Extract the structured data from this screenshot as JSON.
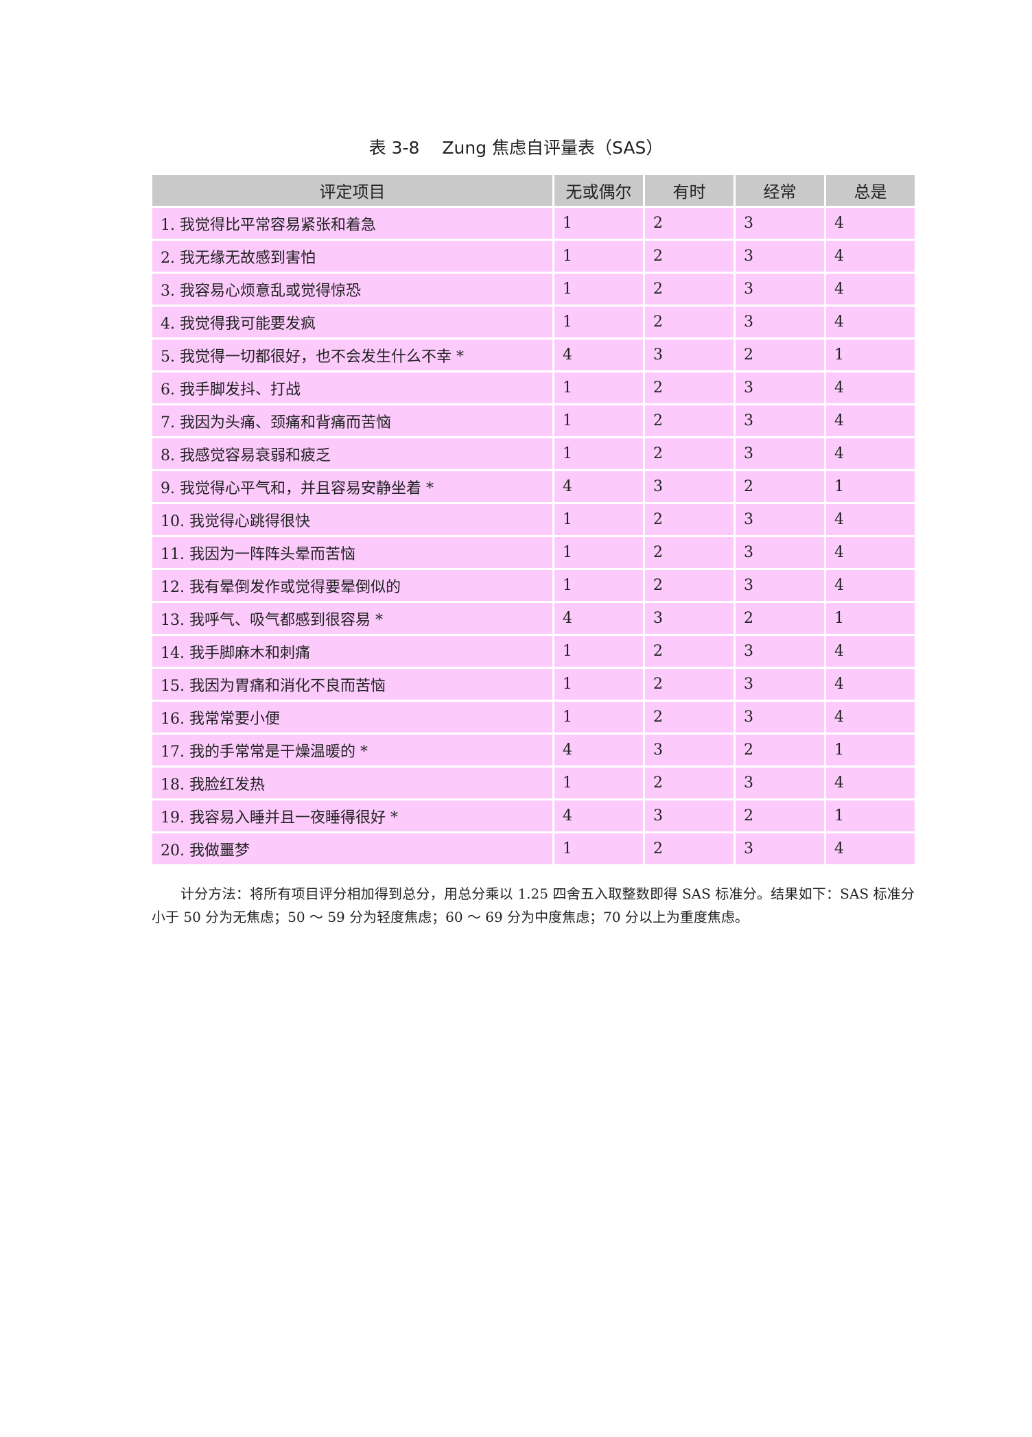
{
  "title": "表 3-8　 Zung 焦虑自评量表（SAS）",
  "table": {
    "header": [
      "评定项目",
      "无或偶尔",
      "有时",
      "经常",
      "总是"
    ],
    "rows": [
      [
        "1. 我觉得比平常容易紧张和着急",
        1,
        2,
        3,
        4
      ],
      [
        "2. 我无缘无故感到害怕",
        1,
        2,
        3,
        4
      ],
      [
        "3. 我容易心烦意乱或觉得惊恐",
        1,
        2,
        3,
        4
      ],
      [
        "4. 我觉得我可能要发疯",
        1,
        2,
        3,
        4
      ],
      [
        "5. 我觉得一切都很好，也不会发生什么不幸 *",
        4,
        3,
        2,
        1
      ],
      [
        "6. 我手脚发抖、打战",
        1,
        2,
        3,
        4
      ],
      [
        "7. 我因为头痛、颈痛和背痛而苦恼",
        1,
        2,
        3,
        4
      ],
      [
        "8. 我感觉容易衰弱和疲乏",
        1,
        2,
        3,
        4
      ],
      [
        "9. 我觉得心平气和，并且容易安静坐着 *",
        4,
        3,
        2,
        1
      ],
      [
        "10. 我觉得心跳得很快",
        1,
        2,
        3,
        4
      ],
      [
        "11. 我因为一阵阵头晕而苦恼",
        1,
        2,
        3,
        4
      ],
      [
        "12. 我有晕倒发作或觉得要晕倒似的",
        1,
        2,
        3,
        4
      ],
      [
        "13. 我呼气、吸气都感到很容易 *",
        4,
        3,
        2,
        1
      ],
      [
        "14. 我手脚麻木和刺痛",
        1,
        2,
        3,
        4
      ],
      [
        "15. 我因为胃痛和消化不良而苦恼",
        1,
        2,
        3,
        4
      ],
      [
        "16. 我常常要小便",
        1,
        2,
        3,
        4
      ],
      [
        "17. 我的手常常是干燥温暖的 *",
        4,
        3,
        2,
        1
      ],
      [
        "18. 我脸红发热",
        1,
        2,
        3,
        4
      ],
      [
        "19. 我容易入睡并且一夜睡得很好 *",
        4,
        3,
        2,
        1
      ],
      [
        "20. 我做噩梦",
        1,
        2,
        3,
        4
      ]
    ]
  },
  "note": "计分方法：将所有项目评分相加得到总分，用总分乘以 1.25 四舍五入取整数即得 SAS 标准分。结果如下：SAS 标准分小于 50 分为无焦虑；50 ～ 59 分为轻度焦虑；60 ～ 69 分为中度焦虑；70 分以上为重度焦虑。"
}
